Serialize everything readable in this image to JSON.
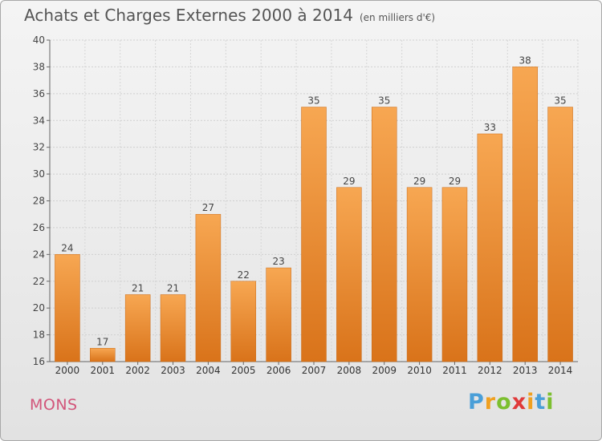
{
  "title": "Achats et Charges Externes 2000 à 2014",
  "subtitle": "(en milliers d'€)",
  "commune": "MONS",
  "logo": {
    "letters": [
      "P",
      "r",
      "o",
      "x",
      "i",
      "t",
      "i"
    ],
    "colors": [
      "#4a9fd8",
      "#f0a020",
      "#7cbf2f",
      "#e03a3a",
      "#f0a020",
      "#4a9fd8",
      "#7cbf2f"
    ]
  },
  "chart_data": {
    "type": "bar",
    "categories": [
      "2000",
      "2001",
      "2002",
      "2003",
      "2004",
      "2005",
      "2006",
      "2007",
      "2008",
      "2009",
      "2010",
      "2011",
      "2012",
      "2013",
      "2014"
    ],
    "values": [
      24,
      17,
      21,
      21,
      27,
      22,
      23,
      35,
      29,
      35,
      29,
      29,
      33,
      38,
      35
    ],
    "ylim": [
      16,
      40
    ],
    "yticks": [
      16,
      18,
      20,
      22,
      24,
      26,
      28,
      30,
      32,
      34,
      36,
      38,
      40
    ],
    "grid": true,
    "bar_color": "#f08a28"
  }
}
